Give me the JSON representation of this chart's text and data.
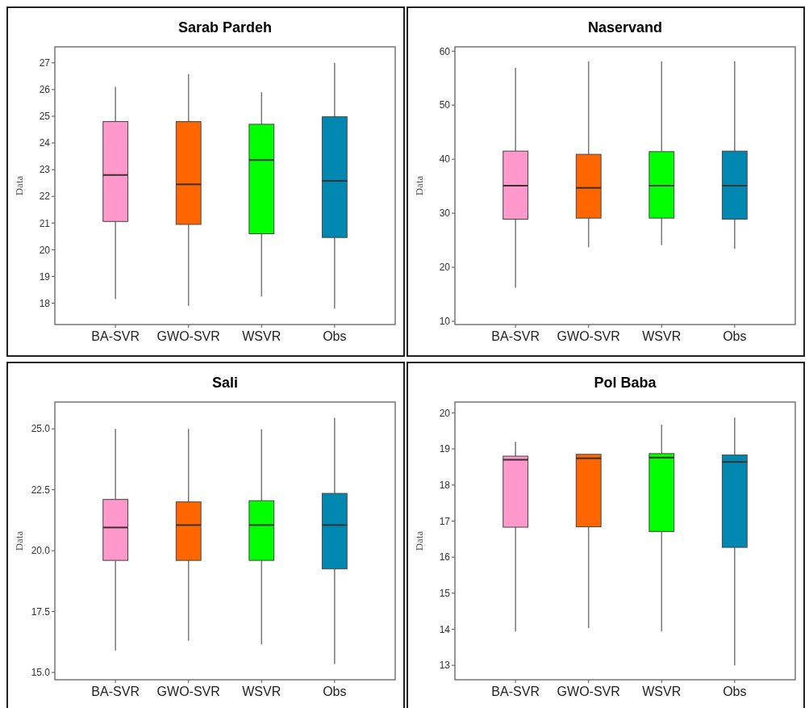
{
  "chart_data": [
    {
      "type": "box",
      "title": "Sarab Pardeh",
      "ylabel": "Data",
      "categories": [
        "BA-SVR",
        "GWO-SVR",
        "WSVR",
        "Obs"
      ],
      "colors": [
        "#ff99cc",
        "#ff6600",
        "#00ff00",
        "#0088b0"
      ],
      "boxes": [
        {
          "low": 18.15,
          "q1": 21.06,
          "median": 22.8,
          "q3": 24.8,
          "high": 26.1
        },
        {
          "low": 17.9,
          "q1": 20.95,
          "median": 22.45,
          "q3": 24.8,
          "high": 26.58
        },
        {
          "low": 18.25,
          "q1": 20.6,
          "median": 23.36,
          "q3": 24.7,
          "high": 25.9
        },
        {
          "low": 17.8,
          "q1": 20.46,
          "median": 22.58,
          "q3": 24.98,
          "high": 27.0
        }
      ],
      "ylim": [
        17.2,
        27.6
      ],
      "yticks": [
        18,
        19,
        20,
        21,
        22,
        23,
        24,
        25,
        26,
        27
      ]
    },
    {
      "type": "box",
      "title": "Naservand",
      "ylabel": "Data",
      "categories": [
        "BA-SVR",
        "GWO-SVR",
        "WSVR",
        "Obs"
      ],
      "colors": [
        "#ff99cc",
        "#ff6600",
        "#00ff00",
        "#0088b0"
      ],
      "boxes": [
        {
          "low": 16.2,
          "q1": 28.9,
          "median": 35.1,
          "q3": 41.5,
          "high": 56.9
        },
        {
          "low": 23.7,
          "q1": 29.1,
          "median": 34.7,
          "q3": 40.9,
          "high": 58.1
        },
        {
          "low": 24.1,
          "q1": 29.1,
          "median": 35.1,
          "q3": 41.4,
          "high": 58.1
        },
        {
          "low": 23.4,
          "q1": 28.9,
          "median": 35.1,
          "q3": 41.5,
          "high": 58.1
        }
      ],
      "ylim": [
        9.4,
        60.8
      ],
      "yticks": [
        10,
        20,
        30,
        40,
        50,
        60
      ]
    },
    {
      "type": "box",
      "title": "Sali",
      "ylabel": "Data",
      "categories": [
        "BA-SVR",
        "GWO-SVR",
        "WSVR",
        "Obs"
      ],
      "colors": [
        "#ff99cc",
        "#ff6600",
        "#00ff00",
        "#0088b0"
      ],
      "boxes": [
        {
          "low": 15.9,
          "q1": 19.6,
          "median": 20.95,
          "q3": 22.1,
          "high": 25.0
        },
        {
          "low": 16.3,
          "q1": 19.6,
          "median": 21.05,
          "q3": 22.0,
          "high": 25.0
        },
        {
          "low": 16.15,
          "q1": 19.6,
          "median": 21.05,
          "q3": 22.05,
          "high": 24.98
        },
        {
          "low": 15.35,
          "q1": 19.25,
          "median": 21.05,
          "q3": 22.35,
          "high": 25.45
        }
      ],
      "ylim": [
        14.7,
        26.1
      ],
      "yticks": [
        {
          "value": 15,
          "label": "15.0"
        },
        17.5,
        {
          "value": 20,
          "label": "20.0"
        },
        22.5,
        {
          "value": 25,
          "label": "25.0"
        }
      ]
    },
    {
      "type": "box",
      "title": "Pol Baba",
      "ylabel": "Data",
      "categories": [
        "BA-SVR",
        "GWO-SVR",
        "WSVR",
        "Obs"
      ],
      "colors": [
        "#ff99cc",
        "#ff6600",
        "#00ff00",
        "#0088b0"
      ],
      "boxes": [
        {
          "low": 13.94,
          "q1": 16.83,
          "median": 18.7,
          "q3": 18.8,
          "high": 19.2
        },
        {
          "low": 14.03,
          "q1": 16.84,
          "median": 18.74,
          "q3": 18.85,
          "high": 18.85
        },
        {
          "low": 13.94,
          "q1": 16.71,
          "median": 18.76,
          "q3": 18.87,
          "high": 19.67
        },
        {
          "low": 13.0,
          "q1": 16.27,
          "median": 18.64,
          "q3": 18.83,
          "high": 19.87
        }
      ],
      "ylim": [
        12.6,
        20.3
      ],
      "yticks": [
        13,
        14,
        15,
        16,
        17,
        18,
        19,
        20
      ]
    }
  ]
}
